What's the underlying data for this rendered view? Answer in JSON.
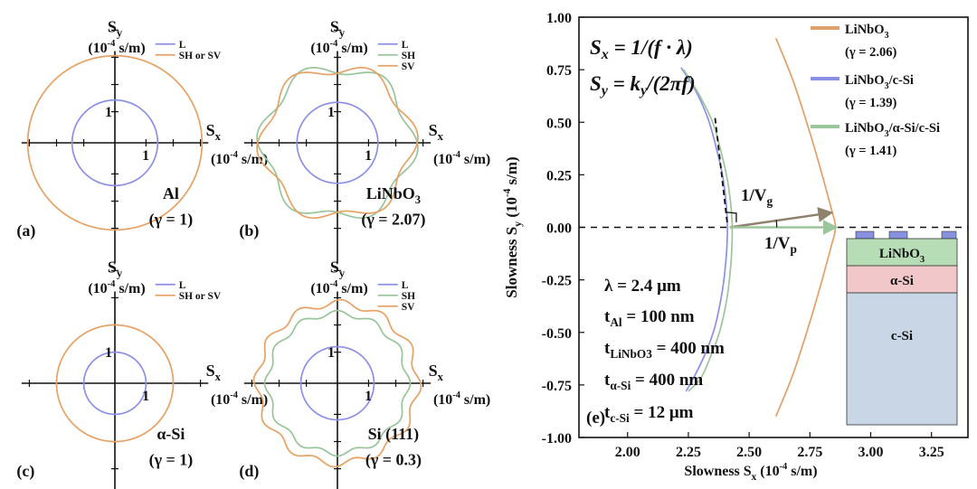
{
  "colors": {
    "L": "#8b90e6",
    "SH": "#98c49a",
    "SV": "#e6a164",
    "LiNbO3_curve": "#e2a06a",
    "blue_curve": "#8b90e6",
    "green_curve": "#9cc59c",
    "vg_arrow": "#8e826c",
    "vp_arrow": "#9bc69b",
    "layer_top": "#b7ddb6",
    "layer_mid": "#f2c7c9",
    "layer_bot": "#c9d6e5",
    "electrode": "#8791e0"
  },
  "panels": [
    {
      "id": "a",
      "label": "(a)",
      "material": "Al",
      "gamma": "(γ = 1)",
      "sx": "S",
      "sx_sub": "x",
      "sy": "S",
      "sy_sub": "y",
      "unit": "(10",
      "unit_exp": "-4",
      "unit_tail": " s/m)",
      "tick_x": "1",
      "tick_y": "1",
      "legend": [
        {
          "label": "L",
          "color_key": "L"
        },
        {
          "label": "SH or SV",
          "color_key": "SV"
        }
      ]
    },
    {
      "id": "b",
      "label": "(b)",
      "material": "LiNbO",
      "material_sub": "3",
      "gamma": "(γ = 2.07)",
      "sx": "S",
      "sx_sub": "x",
      "sy": "S",
      "sy_sub": "y",
      "unit": "(10",
      "unit_exp": "-4",
      "unit_tail": " s/m)",
      "tick_x": "1",
      "tick_y": "1",
      "legend": [
        {
          "label": "L",
          "color_key": "L"
        },
        {
          "label": "SH",
          "color_key": "SH"
        },
        {
          "label": "SV",
          "color_key": "SV"
        }
      ]
    },
    {
      "id": "c",
      "label": "(c)",
      "material": "α-Si",
      "gamma": "(γ = 1)",
      "sx": "S",
      "sx_sub": "x",
      "sy": "S",
      "sy_sub": "y",
      "unit": "(10",
      "unit_exp": "-4",
      "unit_tail": " s/m)",
      "tick_x": "1",
      "tick_y": "1",
      "legend": [
        {
          "label": "L",
          "color_key": "L"
        },
        {
          "label": "SH or SV",
          "color_key": "SV"
        }
      ]
    },
    {
      "id": "d",
      "label": "(d)",
      "material": "Si (111)",
      "gamma": "(γ = 0.3)",
      "sx": "S",
      "sx_sub": "x",
      "sy": "S",
      "sy_sub": "y",
      "unit": "(10",
      "unit_exp": "-4",
      "unit_tail": " s/m)",
      "tick_x": "1",
      "tick_y": "1",
      "legend": [
        {
          "label": "L",
          "color_key": "L"
        },
        {
          "label": "SH",
          "color_key": "SH"
        },
        {
          "label": "SV",
          "color_key": "SV"
        }
      ]
    }
  ],
  "chart_data": [
    {
      "type": "line",
      "panel": "a",
      "xlim": [
        -1.2,
        1.2
      ],
      "ylim": [
        -1.55,
        1.2
      ],
      "series": [
        {
          "name": "L",
          "shape": "circle",
          "radius": 0.55
        },
        {
          "name": "SH or SV",
          "shape": "circle",
          "radius": 1.12
        }
      ]
    },
    {
      "type": "line",
      "panel": "b",
      "xlim": [
        -1.2,
        1.2
      ],
      "ylim": [
        -1.55,
        1.2
      ],
      "series": [
        {
          "name": "L",
          "shape": "circle",
          "radius": 0.52
        },
        {
          "name": "SH",
          "shape": "lobed",
          "radius": 0.96,
          "lobes": 3,
          "amplitude": 0.08,
          "phase_deg": 30
        },
        {
          "name": "SV",
          "shape": "lobed",
          "radius": 0.96,
          "lobes": 3,
          "amplitude": 0.08,
          "phase_deg": -30
        }
      ]
    },
    {
      "type": "line",
      "panel": "c",
      "xlim": [
        -1.2,
        1.2
      ],
      "ylim": [
        -1.55,
        1.2
      ],
      "series": [
        {
          "name": "L",
          "shape": "circle",
          "radius": 0.4
        },
        {
          "name": "SH or SV",
          "shape": "circle",
          "radius": 0.75
        }
      ]
    },
    {
      "type": "line",
      "panel": "d",
      "xlim": [
        -1.2,
        1.2
      ],
      "ylim": [
        -1.55,
        1.2
      ],
      "series": [
        {
          "name": "L",
          "shape": "circle",
          "radius": 0.47
        },
        {
          "name": "SH",
          "shape": "lobed",
          "radius": 0.9,
          "lobes": 6,
          "amplitude": 0.04,
          "phase_deg": 0
        },
        {
          "name": "SV",
          "shape": "lobed",
          "radius": 1.03,
          "lobes": 6,
          "amplitude": 0.045,
          "phase_deg": 30
        }
      ]
    },
    {
      "type": "line",
      "panel": "e",
      "xlim": [
        1.8,
        3.4
      ],
      "ylim": [
        -1.0,
        1.0
      ],
      "xticks": [
        2.0,
        2.25,
        2.5,
        2.75,
        3.0,
        3.25
      ],
      "xtick_labels": [
        "2.00",
        "2.25",
        "2.50",
        "2.75",
        "3.00",
        "3.25"
      ],
      "yticks": [
        -1.0,
        -0.75,
        -0.5,
        -0.25,
        0.0,
        0.25,
        0.5,
        0.75,
        1.0
      ],
      "ytick_labels": [
        "-1.00",
        "-0.75",
        "-0.50",
        "-0.25",
        "0.00",
        "0.25",
        "0.50",
        "0.75",
        "1.00"
      ],
      "xlabel": "Slowness S",
      "xlabel_sub": "x",
      "xlabel_tail": " (10",
      "xlabel_exp": "-4",
      "xlabel_unit": " s/m)",
      "ylabel": "Slowness S",
      "ylabel_sub": "y",
      "ylabel_tail": " (10",
      "ylabel_exp": "-4",
      "ylabel_unit": " s/m)",
      "series": [
        {
          "name": "LiNbO3",
          "gamma": "(γ = 2.06)",
          "color_key": "LiNbO3_curve",
          "x": [
            2.61,
            2.68,
            2.75,
            2.8,
            2.84,
            2.855,
            2.84,
            2.8,
            2.75,
            2.68,
            2.61
          ],
          "y": [
            0.9,
            0.7,
            0.45,
            0.25,
            0.08,
            0.0,
            -0.08,
            -0.25,
            -0.45,
            -0.7,
            -0.9
          ]
        },
        {
          "name": "LiNbO3/c-Si",
          "gamma": "(γ = 1.39)",
          "color_key": "blue_curve",
          "x": [
            2.22,
            2.28,
            2.33,
            2.36,
            2.39,
            2.405,
            2.41,
            2.41,
            2.405,
            2.39,
            2.36,
            2.32,
            2.27,
            2.24
          ],
          "y": [
            0.76,
            0.65,
            0.52,
            0.4,
            0.25,
            0.12,
            0.03,
            -0.05,
            -0.15,
            -0.3,
            -0.47,
            -0.6,
            -0.72,
            -0.78
          ]
        },
        {
          "name": "LiNbO3/α-Si/c-Si",
          "gamma": "(γ = 1.41)",
          "color_key": "green_curve",
          "x": [
            2.23,
            2.29,
            2.35,
            2.38,
            2.41,
            2.425,
            2.43,
            2.43,
            2.425,
            2.41,
            2.38,
            2.34,
            2.3,
            2.25
          ],
          "y": [
            0.75,
            0.64,
            0.5,
            0.38,
            0.23,
            0.1,
            0.02,
            -0.06,
            -0.17,
            -0.33,
            -0.49,
            -0.62,
            -0.72,
            -0.78
          ]
        }
      ],
      "legend_labels": [
        {
          "main": "LiNbO",
          "sub": "3",
          "tail": ""
        },
        {
          "main": "LiNbO",
          "sub": "3",
          "tail": "/c-Si"
        },
        {
          "main": "LiNbO",
          "sub": "3",
          "tail": "/α-Si/c-Si"
        }
      ],
      "dashed_tangent": {
        "x": [
          2.36,
          2.41
        ],
        "y": [
          0.52,
          0.02
        ]
      },
      "vg_arrow": {
        "from": [
          2.42,
          0.0
        ],
        "to": [
          2.84,
          0.07
        ]
      },
      "vp_arrow": {
        "from": [
          2.42,
          0.0
        ],
        "to": [
          2.86,
          0.0
        ]
      },
      "formula1": {
        "lhs": "S",
        "lhs_sub": "x",
        "rhs": " = 1/(f · λ)"
      },
      "formula2": {
        "lhs": "S",
        "lhs_sub": "y",
        "rhs1": " = k",
        "rhs_sub": "y",
        "rhs2": "/(2πf)"
      },
      "vg_label": {
        "main": "1/V",
        "sub": "g"
      },
      "vp_label": {
        "main": "1/V",
        "sub": "p"
      },
      "params": [
        {
          "main": "λ = 2.4 μm",
          "sub": "",
          "tail": ""
        },
        {
          "main": "t",
          "sub": "Al",
          "tail": " = 100 nm"
        },
        {
          "main": "t",
          "sub": "LiNbO3",
          "tail": " = 400 nm"
        },
        {
          "main": "t",
          "sub": "α-Si",
          "tail": " = 400 nm"
        },
        {
          "main": "t",
          "sub": "c-Si",
          "tail": " = 12 μm"
        }
      ],
      "panel_label": "(e)",
      "stack": {
        "top_main": "LiNbO",
        "top_sub": "3",
        "mid": "α-Si",
        "bot": "c-Si"
      }
    }
  ]
}
